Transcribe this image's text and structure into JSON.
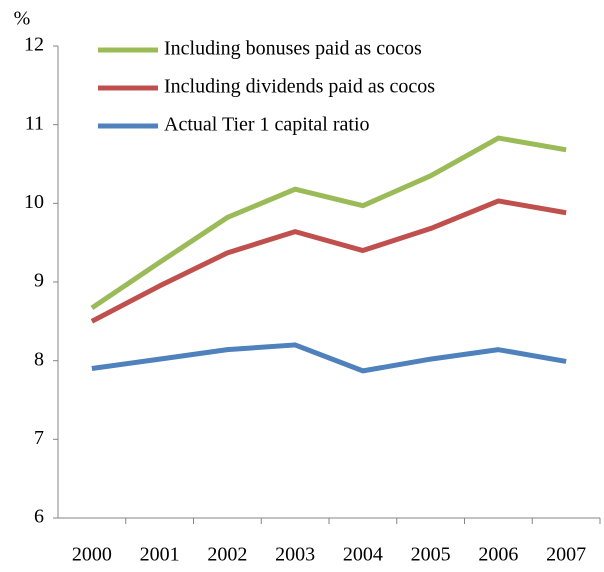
{
  "chart_data": {
    "type": "line",
    "y_unit": "%",
    "categories": [
      "2000",
      "2001",
      "2002",
      "2003",
      "2004",
      "2005",
      "2006",
      "2007"
    ],
    "series": [
      {
        "name": "Including bonuses paid as cocos",
        "color": "#9bbb59",
        "values": [
          8.67,
          9.25,
          9.82,
          10.18,
          9.97,
          10.35,
          10.83,
          10.68
        ]
      },
      {
        "name": "Including dividends paid as cocos",
        "color": "#c0504d",
        "values": [
          8.5,
          8.95,
          9.37,
          9.64,
          9.4,
          9.68,
          10.03,
          9.88
        ]
      },
      {
        "name": "Actual Tier 1 capital ratio",
        "color": "#4f81bd",
        "values": [
          7.9,
          8.02,
          8.14,
          8.2,
          7.87,
          8.02,
          8.14,
          7.99
        ]
      }
    ],
    "ylim": [
      6,
      12
    ],
    "yticks": [
      6,
      7,
      8,
      9,
      10,
      11,
      12
    ],
    "legend": "upper left"
  }
}
